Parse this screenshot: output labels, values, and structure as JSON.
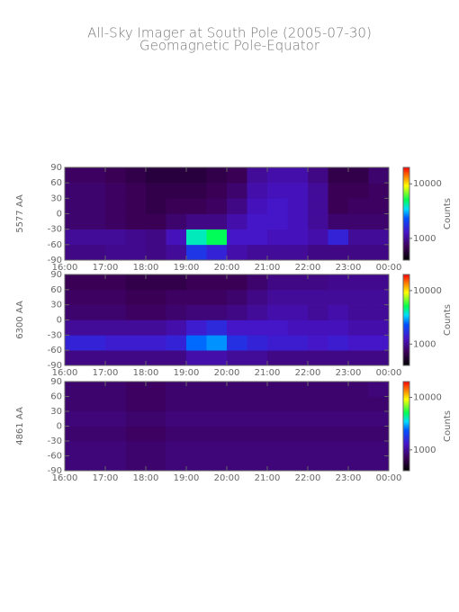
{
  "title": "All-Sky Imager at South Pole (2005-07-30)",
  "subtitle": "Geomagnetic Pole-Equator",
  "chart_data": [
    {
      "type": "heatmap",
      "ylabel": "5577 AA",
      "xbins": [
        16,
        16.5,
        17,
        17.5,
        18,
        18.5,
        19,
        19.5,
        20,
        20.5,
        21,
        21.5,
        22,
        22.5,
        23,
        23.5,
        24
      ],
      "ybins": [
        -90,
        -60,
        -30,
        0,
        30,
        60,
        90
      ],
      "values": [
        [
          900,
          900,
          950,
          950,
          900,
          1000,
          1800,
          1500,
          1100,
          1000,
          1000,
          1000,
          900,
          900,
          900,
          900
        ],
        [
          1000,
          1000,
          1000,
          950,
          900,
          1200,
          4000,
          5000,
          1300,
          1300,
          1200,
          1200,
          1100,
          1500,
          1000,
          1000
        ],
        [
          800,
          800,
          750,
          700,
          700,
          800,
          900,
          900,
          1100,
          1300,
          1300,
          1200,
          1000,
          800,
          800,
          800
        ],
        [
          800,
          800,
          750,
          700,
          650,
          700,
          700,
          750,
          900,
          1200,
          1300,
          1200,
          1000,
          700,
          750,
          750
        ],
        [
          800,
          800,
          750,
          700,
          650,
          650,
          650,
          700,
          800,
          1100,
          1200,
          1200,
          1000,
          700,
          700,
          750
        ],
        [
          750,
          750,
          700,
          650,
          600,
          600,
          600,
          650,
          700,
          1000,
          1100,
          1100,
          900,
          650,
          650,
          800
        ]
      ],
      "xlim": [
        16,
        24
      ],
      "xticks": [
        {
          "value": 16,
          "label": "16:00"
        },
        {
          "value": 17,
          "label": "17:00"
        },
        {
          "value": 18,
          "label": "18:00"
        },
        {
          "value": 19,
          "label": "19:00"
        },
        {
          "value": 20,
          "label": "20:00"
        },
        {
          "value": 21,
          "label": "21:00"
        },
        {
          "value": 22,
          "label": "22:00"
        },
        {
          "value": 23,
          "label": "23:00"
        },
        {
          "value": 24,
          "label": "00:00"
        }
      ],
      "ylim": [
        -90,
        90
      ],
      "yticks": [
        -90,
        -60,
        -30,
        0,
        30,
        60,
        90
      ],
      "colorbar": {
        "label": "Counts",
        "log": true,
        "lim": [
          400,
          20000
        ],
        "ticks": [
          1000,
          10000
        ]
      }
    },
    {
      "type": "heatmap",
      "ylabel": "6300 AA",
      "xbins": [
        16,
        16.5,
        17,
        17.5,
        18,
        18.5,
        19,
        19.5,
        20,
        20.5,
        21,
        21.5,
        22,
        22.5,
        23,
        23.5,
        24
      ],
      "ybins": [
        -90,
        -60,
        -30,
        0,
        30,
        60,
        90
      ],
      "values": [
        [
          900,
          900,
          900,
          900,
          900,
          900,
          1100,
          1100,
          1000,
          1000,
          900,
          900,
          900,
          900,
          900,
          900
        ],
        [
          1500,
          1500,
          1400,
          1400,
          1400,
          1500,
          2500,
          2800,
          1700,
          1500,
          1400,
          1400,
          1300,
          1400,
          1300,
          1300
        ],
        [
          1000,
          1000,
          1000,
          1000,
          1000,
          1100,
          1400,
          1600,
          1300,
          1300,
          1300,
          1200,
          1200,
          1200,
          1100,
          1100
        ],
        [
          800,
          800,
          800,
          750,
          750,
          800,
          850,
          850,
          900,
          1000,
          1100,
          1100,
          1000,
          1100,
          1000,
          1000
        ],
        [
          750,
          750,
          750,
          700,
          700,
          750,
          750,
          750,
          800,
          900,
          1000,
          1000,
          1000,
          1000,
          1000,
          1000
        ],
        [
          700,
          700,
          700,
          650,
          650,
          650,
          700,
          700,
          700,
          800,
          900,
          900,
          900,
          950,
          950,
          950
        ]
      ],
      "xlim": [
        16,
        24
      ],
      "xticks": [
        {
          "value": 16,
          "label": "16:00"
        },
        {
          "value": 17,
          "label": "17:00"
        },
        {
          "value": 18,
          "label": "18:00"
        },
        {
          "value": 19,
          "label": "19:00"
        },
        {
          "value": 20,
          "label": "20:00"
        },
        {
          "value": 21,
          "label": "21:00"
        },
        {
          "value": 22,
          "label": "22:00"
        },
        {
          "value": 23,
          "label": "23:00"
        },
        {
          "value": 24,
          "label": "00:00"
        }
      ],
      "ylim": [
        -90,
        90
      ],
      "yticks": [
        -90,
        -60,
        -30,
        0,
        30,
        60,
        90
      ],
      "colorbar": {
        "label": "Counts",
        "log": true,
        "lim": [
          400,
          20000
        ],
        "ticks": [
          1000,
          10000
        ]
      }
    },
    {
      "type": "heatmap",
      "ylabel": "4861 AA",
      "xbins": [
        16,
        16.5,
        17,
        17.5,
        18,
        18.5,
        19,
        19.5,
        20,
        20.5,
        21,
        21.5,
        22,
        22.5,
        23,
        23.5,
        24
      ],
      "ybins": [
        -90,
        -60,
        -30,
        0,
        30,
        60,
        90
      ],
      "values": [
        [
          850,
          850,
          850,
          800,
          800,
          850,
          850,
          850,
          850,
          850,
          850,
          850,
          850,
          850,
          850,
          850
        ],
        [
          850,
          850,
          850,
          800,
          800,
          850,
          850,
          850,
          850,
          850,
          850,
          850,
          850,
          850,
          850,
          850
        ],
        [
          800,
          800,
          800,
          750,
          750,
          800,
          800,
          800,
          800,
          800,
          800,
          800,
          800,
          800,
          800,
          800
        ],
        [
          850,
          850,
          850,
          800,
          800,
          850,
          850,
          850,
          850,
          850,
          850,
          850,
          850,
          850,
          850,
          850
        ],
        [
          800,
          800,
          800,
          750,
          750,
          800,
          800,
          800,
          800,
          800,
          800,
          800,
          800,
          800,
          800,
          800
        ],
        [
          800,
          800,
          800,
          750,
          750,
          800,
          800,
          800,
          800,
          800,
          800,
          800,
          800,
          800,
          800,
          850
        ]
      ],
      "xlim": [
        16,
        24
      ],
      "xticks": [
        {
          "value": 16,
          "label": "16:00"
        },
        {
          "value": 17,
          "label": "17:00"
        },
        {
          "value": 18,
          "label": "18:00"
        },
        {
          "value": 19,
          "label": "19:00"
        },
        {
          "value": 20,
          "label": "20:00"
        },
        {
          "value": 21,
          "label": "21:00"
        },
        {
          "value": 22,
          "label": "22:00"
        },
        {
          "value": 23,
          "label": "23:00"
        },
        {
          "value": 24,
          "label": "00:00"
        }
      ],
      "ylim": [
        -90,
        90
      ],
      "yticks": [
        -90,
        -60,
        -30,
        0,
        30,
        60,
        90
      ],
      "colorbar": {
        "label": "Counts",
        "log": true,
        "lim": [
          400,
          20000
        ],
        "ticks": [
          1000,
          10000
        ]
      }
    }
  ]
}
